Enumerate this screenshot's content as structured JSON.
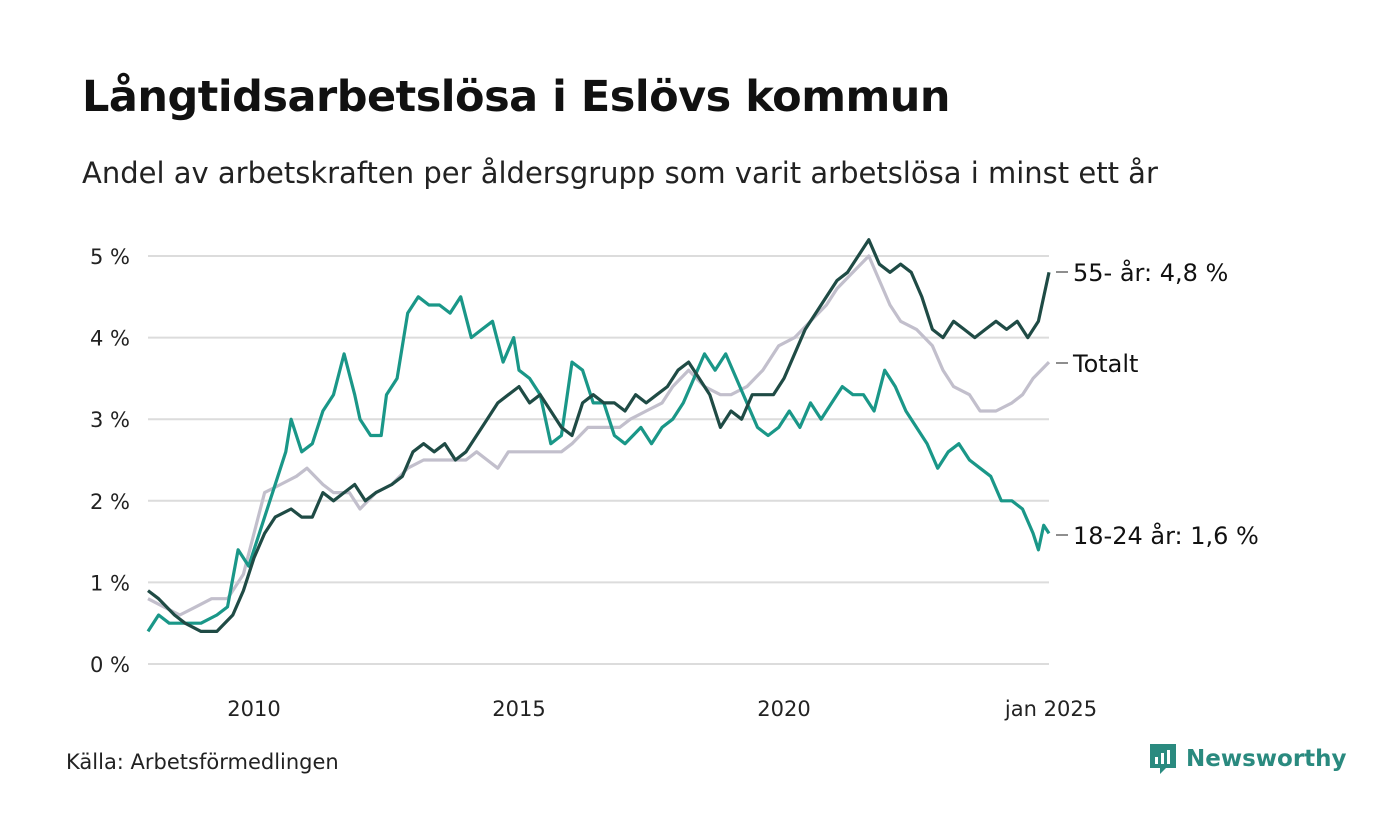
{
  "title": "Långtidsarbetslösa i Eslövs kommun",
  "subtitle": "Andel av arbetskraften per åldersgrupp som varit arbetslösa i minst ett år",
  "source": "Källa: Arbetsförmedlingen",
  "brand": {
    "name": "Newsworthy",
    "icon": "newsworthy-logo-icon",
    "color": "#2a8a7f"
  },
  "chart_data": {
    "type": "line",
    "x_unit": "year",
    "xlim": [
      2008.0,
      2025.0
    ],
    "ylim": [
      0,
      5
    ],
    "y_ticks": [
      0,
      1,
      2,
      3,
      4,
      5
    ],
    "y_tick_labels": [
      "0 %",
      "1 %",
      "2 %",
      "3 %",
      "4 %",
      "5 %"
    ],
    "x_ticks": [
      2010,
      2015,
      2020,
      2025
    ],
    "x_tick_labels": [
      "2010",
      "2015",
      "2020",
      "jan 2025"
    ],
    "grid": true,
    "legend": "end-of-line labels",
    "series": [
      {
        "name": "Totalt",
        "end_label": "Totalt",
        "color": "#c2bfcc",
        "points": [
          [
            2008.0,
            0.8
          ],
          [
            2008.3,
            0.7
          ],
          [
            2008.6,
            0.6
          ],
          [
            2008.9,
            0.7
          ],
          [
            2009.2,
            0.8
          ],
          [
            2009.5,
            0.8
          ],
          [
            2009.8,
            1.1
          ],
          [
            2010.0,
            1.6
          ],
          [
            2010.2,
            2.1
          ],
          [
            2010.5,
            2.2
          ],
          [
            2010.8,
            2.3
          ],
          [
            2011.0,
            2.4
          ],
          [
            2011.3,
            2.2
          ],
          [
            2011.5,
            2.1
          ],
          [
            2011.8,
            2.1
          ],
          [
            2012.0,
            1.9
          ],
          [
            2012.3,
            2.1
          ],
          [
            2012.6,
            2.2
          ],
          [
            2012.9,
            2.4
          ],
          [
            2013.2,
            2.5
          ],
          [
            2013.5,
            2.5
          ],
          [
            2013.8,
            2.5
          ],
          [
            2014.0,
            2.5
          ],
          [
            2014.2,
            2.6
          ],
          [
            2014.4,
            2.5
          ],
          [
            2014.6,
            2.4
          ],
          [
            2014.8,
            2.6
          ],
          [
            2015.0,
            2.6
          ],
          [
            2015.3,
            2.6
          ],
          [
            2015.5,
            2.6
          ],
          [
            2015.8,
            2.6
          ],
          [
            2016.0,
            2.7
          ],
          [
            2016.3,
            2.9
          ],
          [
            2016.6,
            2.9
          ],
          [
            2016.9,
            2.9
          ],
          [
            2017.1,
            3.0
          ],
          [
            2017.4,
            3.1
          ],
          [
            2017.7,
            3.2
          ],
          [
            2017.9,
            3.4
          ],
          [
            2018.2,
            3.6
          ],
          [
            2018.5,
            3.4
          ],
          [
            2018.8,
            3.3
          ],
          [
            2019.0,
            3.3
          ],
          [
            2019.3,
            3.4
          ],
          [
            2019.6,
            3.6
          ],
          [
            2019.9,
            3.9
          ],
          [
            2020.2,
            4.0
          ],
          [
            2020.5,
            4.2
          ],
          [
            2020.8,
            4.4
          ],
          [
            2021.0,
            4.6
          ],
          [
            2021.3,
            4.8
          ],
          [
            2021.6,
            5.0
          ],
          [
            2021.8,
            4.7
          ],
          [
            2022.0,
            4.4
          ],
          [
            2022.2,
            4.2
          ],
          [
            2022.5,
            4.1
          ],
          [
            2022.8,
            3.9
          ],
          [
            2023.0,
            3.6
          ],
          [
            2023.2,
            3.4
          ],
          [
            2023.5,
            3.3
          ],
          [
            2023.7,
            3.1
          ],
          [
            2024.0,
            3.1
          ],
          [
            2024.3,
            3.2
          ],
          [
            2024.5,
            3.3
          ],
          [
            2024.7,
            3.5
          ],
          [
            2025.0,
            3.7
          ]
        ]
      },
      {
        "name": "18-24 år",
        "end_label": "18-24 år: 1,6 %",
        "color": "#1a9788",
        "points": [
          [
            2008.0,
            0.4
          ],
          [
            2008.2,
            0.6
          ],
          [
            2008.4,
            0.5
          ],
          [
            2008.7,
            0.5
          ],
          [
            2009.0,
            0.5
          ],
          [
            2009.3,
            0.6
          ],
          [
            2009.5,
            0.7
          ],
          [
            2009.7,
            1.4
          ],
          [
            2009.9,
            1.2
          ],
          [
            2010.0,
            1.4
          ],
          [
            2010.2,
            1.8
          ],
          [
            2010.4,
            2.2
          ],
          [
            2010.6,
            2.6
          ],
          [
            2010.7,
            3.0
          ],
          [
            2010.9,
            2.6
          ],
          [
            2011.1,
            2.7
          ],
          [
            2011.3,
            3.1
          ],
          [
            2011.5,
            3.3
          ],
          [
            2011.7,
            3.8
          ],
          [
            2011.9,
            3.3
          ],
          [
            2012.0,
            3.0
          ],
          [
            2012.2,
            2.8
          ],
          [
            2012.4,
            2.8
          ],
          [
            2012.5,
            3.3
          ],
          [
            2012.7,
            3.5
          ],
          [
            2012.9,
            4.3
          ],
          [
            2013.1,
            4.5
          ],
          [
            2013.3,
            4.4
          ],
          [
            2013.5,
            4.4
          ],
          [
            2013.7,
            4.3
          ],
          [
            2013.9,
            4.5
          ],
          [
            2014.1,
            4.0
          ],
          [
            2014.3,
            4.1
          ],
          [
            2014.5,
            4.2
          ],
          [
            2014.7,
            3.7
          ],
          [
            2014.9,
            4.0
          ],
          [
            2015.0,
            3.6
          ],
          [
            2015.2,
            3.5
          ],
          [
            2015.4,
            3.3
          ],
          [
            2015.6,
            2.7
          ],
          [
            2015.8,
            2.8
          ],
          [
            2016.0,
            3.7
          ],
          [
            2016.2,
            3.6
          ],
          [
            2016.4,
            3.2
          ],
          [
            2016.6,
            3.2
          ],
          [
            2016.8,
            2.8
          ],
          [
            2017.0,
            2.7
          ],
          [
            2017.3,
            2.9
          ],
          [
            2017.5,
            2.7
          ],
          [
            2017.7,
            2.9
          ],
          [
            2017.9,
            3.0
          ],
          [
            2018.1,
            3.2
          ],
          [
            2018.3,
            3.5
          ],
          [
            2018.5,
            3.8
          ],
          [
            2018.7,
            3.6
          ],
          [
            2018.9,
            3.8
          ],
          [
            2019.1,
            3.5
          ],
          [
            2019.3,
            3.2
          ],
          [
            2019.5,
            2.9
          ],
          [
            2019.7,
            2.8
          ],
          [
            2019.9,
            2.9
          ],
          [
            2020.1,
            3.1
          ],
          [
            2020.3,
            2.9
          ],
          [
            2020.5,
            3.2
          ],
          [
            2020.7,
            3.0
          ],
          [
            2020.9,
            3.2
          ],
          [
            2021.1,
            3.4
          ],
          [
            2021.3,
            3.3
          ],
          [
            2021.5,
            3.3
          ],
          [
            2021.7,
            3.1
          ],
          [
            2021.9,
            3.6
          ],
          [
            2022.1,
            3.4
          ],
          [
            2022.3,
            3.1
          ],
          [
            2022.5,
            2.9
          ],
          [
            2022.7,
            2.7
          ],
          [
            2022.9,
            2.4
          ],
          [
            2023.1,
            2.6
          ],
          [
            2023.3,
            2.7
          ],
          [
            2023.5,
            2.5
          ],
          [
            2023.7,
            2.4
          ],
          [
            2023.9,
            2.3
          ],
          [
            2024.1,
            2.0
          ],
          [
            2024.3,
            2.0
          ],
          [
            2024.5,
            1.9
          ],
          [
            2024.7,
            1.6
          ],
          [
            2024.8,
            1.4
          ],
          [
            2024.9,
            1.7
          ],
          [
            2025.0,
            1.6
          ]
        ]
      },
      {
        "name": "55- år",
        "end_label": "55- år: 4,8 %",
        "color": "#1f4b45",
        "points": [
          [
            2008.0,
            0.9
          ],
          [
            2008.2,
            0.8
          ],
          [
            2008.5,
            0.6
          ],
          [
            2008.7,
            0.5
          ],
          [
            2009.0,
            0.4
          ],
          [
            2009.3,
            0.4
          ],
          [
            2009.6,
            0.6
          ],
          [
            2009.8,
            0.9
          ],
          [
            2010.0,
            1.3
          ],
          [
            2010.2,
            1.6
          ],
          [
            2010.4,
            1.8
          ],
          [
            2010.7,
            1.9
          ],
          [
            2010.9,
            1.8
          ],
          [
            2011.1,
            1.8
          ],
          [
            2011.3,
            2.1
          ],
          [
            2011.5,
            2.0
          ],
          [
            2011.7,
            2.1
          ],
          [
            2011.9,
            2.2
          ],
          [
            2012.1,
            2.0
          ],
          [
            2012.3,
            2.1
          ],
          [
            2012.6,
            2.2
          ],
          [
            2012.8,
            2.3
          ],
          [
            2013.0,
            2.6
          ],
          [
            2013.2,
            2.7
          ],
          [
            2013.4,
            2.6
          ],
          [
            2013.6,
            2.7
          ],
          [
            2013.8,
            2.5
          ],
          [
            2014.0,
            2.6
          ],
          [
            2014.2,
            2.8
          ],
          [
            2014.4,
            3.0
          ],
          [
            2014.6,
            3.2
          ],
          [
            2014.8,
            3.3
          ],
          [
            2015.0,
            3.4
          ],
          [
            2015.2,
            3.2
          ],
          [
            2015.4,
            3.3
          ],
          [
            2015.6,
            3.1
          ],
          [
            2015.8,
            2.9
          ],
          [
            2016.0,
            2.8
          ],
          [
            2016.2,
            3.2
          ],
          [
            2016.4,
            3.3
          ],
          [
            2016.6,
            3.2
          ],
          [
            2016.8,
            3.2
          ],
          [
            2017.0,
            3.1
          ],
          [
            2017.2,
            3.3
          ],
          [
            2017.4,
            3.2
          ],
          [
            2017.6,
            3.3
          ],
          [
            2017.8,
            3.4
          ],
          [
            2018.0,
            3.6
          ],
          [
            2018.2,
            3.7
          ],
          [
            2018.4,
            3.5
          ],
          [
            2018.6,
            3.3
          ],
          [
            2018.8,
            2.9
          ],
          [
            2019.0,
            3.1
          ],
          [
            2019.2,
            3.0
          ],
          [
            2019.4,
            3.3
          ],
          [
            2019.6,
            3.3
          ],
          [
            2019.8,
            3.3
          ],
          [
            2020.0,
            3.5
          ],
          [
            2020.2,
            3.8
          ],
          [
            2020.4,
            4.1
          ],
          [
            2020.6,
            4.3
          ],
          [
            2020.8,
            4.5
          ],
          [
            2021.0,
            4.7
          ],
          [
            2021.2,
            4.8
          ],
          [
            2021.4,
            5.0
          ],
          [
            2021.6,
            5.2
          ],
          [
            2021.8,
            4.9
          ],
          [
            2022.0,
            4.8
          ],
          [
            2022.2,
            4.9
          ],
          [
            2022.4,
            4.8
          ],
          [
            2022.6,
            4.5
          ],
          [
            2022.8,
            4.1
          ],
          [
            2023.0,
            4.0
          ],
          [
            2023.2,
            4.2
          ],
          [
            2023.4,
            4.1
          ],
          [
            2023.6,
            4.0
          ],
          [
            2023.8,
            4.1
          ],
          [
            2024.0,
            4.2
          ],
          [
            2024.2,
            4.1
          ],
          [
            2024.4,
            4.2
          ],
          [
            2024.6,
            4.0
          ],
          [
            2024.8,
            4.2
          ],
          [
            2024.9,
            4.5
          ],
          [
            2025.0,
            4.8
          ]
        ]
      }
    ]
  }
}
